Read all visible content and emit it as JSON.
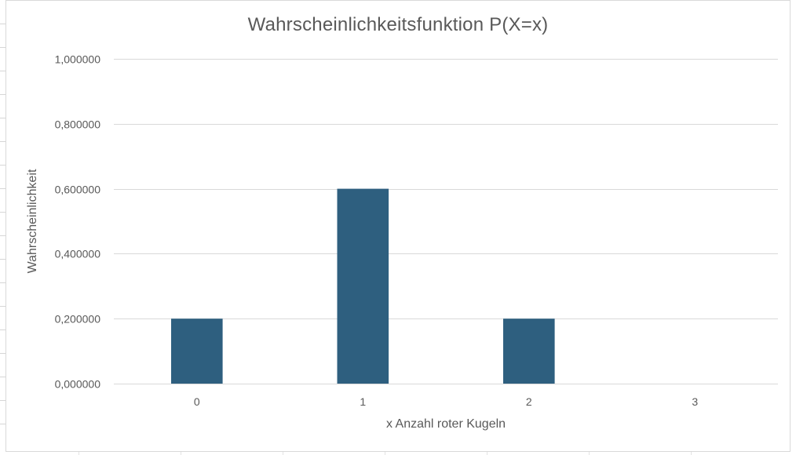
{
  "chart_data": {
    "type": "bar",
    "title": "Wahrscheinlichkeitsfunktion P(X=x)",
    "xlabel": "x Anzahl roter Kugeln",
    "ylabel": "Wahrscheinlichkeit",
    "categories": [
      "0",
      "1",
      "2",
      "3"
    ],
    "series": [
      {
        "values": [
          0.2,
          0.6,
          0.2,
          0.0
        ]
      }
    ],
    "ylim": [
      0,
      1
    ],
    "yticks": [
      0,
      0.2,
      0.4,
      0.6,
      0.8,
      1.0
    ],
    "ytick_labels": [
      "0,000000",
      "0,200000",
      "0,400000",
      "0,600000",
      "0,800000",
      "1,000000"
    ],
    "grid": true,
    "legend": "none",
    "bar_color": "#2e5f7f",
    "gridline_color": "#d9d9d9",
    "text_color": "#595959"
  }
}
